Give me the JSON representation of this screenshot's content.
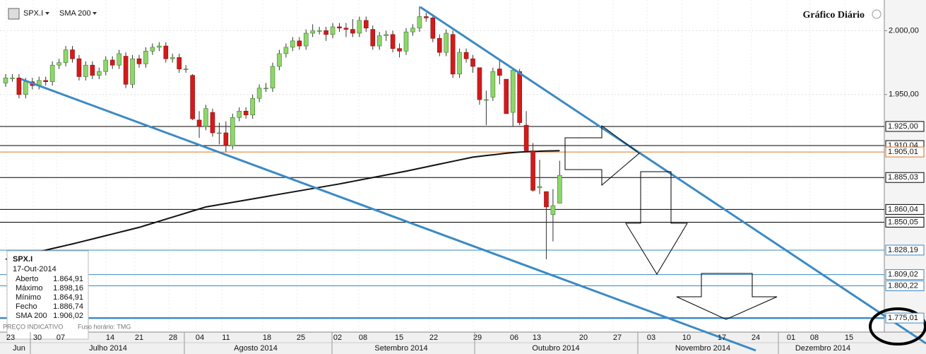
{
  "chart_data": {
    "type": "candlestick",
    "title": "Gráfico Diário",
    "symbol": "SPX.I",
    "indicator": "SMA 200",
    "open": [
      1959,
      1963,
      1963,
      1950,
      1960,
      1957,
      1961,
      1960,
      1973,
      1975,
      1985,
      1978,
      1964,
      1973,
      1965,
      1968,
      1977,
      1973,
      1980,
      1958,
      1978,
      1974,
      1984,
      1987,
      1988,
      1978,
      1979,
      1970,
      1965,
      1930,
      1925,
      1936,
      1920,
      1920,
      1910,
      1932,
      1937,
      1934,
      1947,
      1955,
      1955,
      1972,
      1982,
      1987,
      1992,
      1988,
      1998,
      2000,
      2000,
      1997,
      2003,
      2002,
      2001,
      1998,
      2008,
      2001,
      1988,
      1996,
      1997,
      1986,
      1984,
      1999,
      2002,
      2011,
      2010,
      1994,
      1983,
      1997,
      1966,
      1983,
      1978,
      1971,
      1946,
      1948,
      1970,
      1962,
      1936,
      1968,
      1926,
      1906,
      1877,
      1874,
      1856,
      1864.91
    ],
    "high": [
      1966,
      1966,
      1966,
      1963,
      1963,
      1964,
      1964,
      1976,
      1978,
      1988,
      1988,
      1981,
      1976,
      1976,
      1971,
      1980,
      1980,
      1985,
      1983,
      1981,
      1981,
      1987,
      1990,
      1991,
      1991,
      1982,
      1982,
      1973,
      1966,
      1937,
      1942,
      1939,
      1928,
      1929,
      1935,
      1940,
      1940,
      1950,
      1958,
      1959,
      1975,
      1985,
      1990,
      1995,
      1995,
      2001,
      2005,
      2003,
      2003,
      2006,
      2006,
      2006,
      2009,
      2011,
      2011,
      2004,
      1999,
      2000,
      2000,
      1990,
      2002,
      2005,
      2019,
      2014,
      2013,
      1997,
      2001,
      2000,
      1986,
      1986,
      1981,
      1971,
      1953,
      1971,
      1977,
      1962,
      1970,
      1970,
      1937,
      1912,
      1899,
      1874,
      1876,
      1898.16
    ],
    "low": [
      1956,
      1960,
      1947,
      1947,
      1954,
      1954,
      1957,
      1957,
      1970,
      1972,
      1975,
      1961,
      1961,
      1962,
      1962,
      1965,
      1970,
      1970,
      1955,
      1955,
      1971,
      1971,
      1981,
      1984,
      1975,
      1975,
      1967,
      1967,
      1930,
      1916,
      1922,
      1917,
      1911,
      1905,
      1907,
      1929,
      1931,
      1931,
      1944,
      1952,
      1952,
      1969,
      1979,
      1984,
      1985,
      1985,
      1995,
      1997,
      1992,
      1994,
      1999,
      1995,
      1995,
      1995,
      1999,
      1985,
      1985,
      1992,
      1983,
      1979,
      1981,
      1996,
      1999,
      2007,
      1991,
      1980,
      1980,
      1963,
      1963,
      1975,
      1967,
      1942,
      1926,
      1945,
      1958,
      1935,
      1925,
      1926,
      1906,
      1874,
      1872,
      1821,
      1835,
      1864.91
    ],
    "close": [
      1963,
      1963,
      1950,
      1960,
      1957,
      1961,
      1960,
      1973,
      1975,
      1985,
      1978,
      1964,
      1973,
      1965,
      1968,
      1977,
      1973,
      1982,
      1958,
      1978,
      1974,
      1984,
      1987,
      1988,
      1978,
      1979,
      1970,
      1970,
      1931,
      1925,
      1939,
      1920,
      1920,
      1910,
      1932,
      1937,
      1934,
      1947,
      1955,
      1955,
      1972,
      1982,
      1987,
      1992,
      1988,
      1998,
      2000,
      2000,
      1997,
      2003,
      2002,
      2001,
      1998,
      2008,
      2002,
      1988,
      1996,
      1997,
      1986,
      1984,
      1999,
      2002,
      2011,
      2010,
      1994,
      1983,
      1998,
      1966,
      1983,
      1978,
      1972,
      1946,
      1946,
      1968,
      1965,
      1935,
      1969,
      1928,
      1906,
      1875,
      1878,
      1862,
      1863,
      1886.74
    ],
    "sma": [
      1821,
      1822.2,
      1823.4,
      1824.6,
      1825.8,
      1827,
      1828.2,
      1829.4,
      1830.6,
      1831.8,
      1833,
      1834.3,
      1835.6,
      1836.9,
      1838.2,
      1839.5,
      1840.8,
      1842.1,
      1843.4,
      1844.7,
      1846,
      1847.6,
      1849.2,
      1850.8,
      1852.4,
      1854,
      1855.6,
      1857.2,
      1858.8,
      1860.4,
      1862,
      1862.9,
      1863.8,
      1864.7,
      1865.6,
      1866.5,
      1867.4,
      1868.3,
      1869.2,
      1870.1,
      1871,
      1871.9,
      1872.8,
      1873.7,
      1874.6,
      1875.5,
      1876.4,
      1877.3,
      1878.2,
      1879.1,
      1880,
      1881,
      1882,
      1883,
      1884,
      1885,
      1886,
      1887,
      1888,
      1889,
      1890,
      1891.1,
      1892.2,
      1893.3,
      1894.4,
      1895.5,
      1896.6,
      1897.7,
      1898.8,
      1899.9,
      1901,
      1901.6,
      1902.2,
      1902.8,
      1903.4,
      1904,
      1904.5,
      1904.9,
      1905.2,
      1905.4,
      1905.6,
      1905.8,
      1905.9,
      1906.02
    ],
    "up_color": "#8fd66b",
    "down_color": "#d41a1a",
    "sma_color": "#111111",
    "trend_color": "#3b8ac4",
    "ylim": [
      1764,
      2024
    ],
    "yticks": [
      {
        "value": 1950,
        "label": "1.950,00"
      },
      {
        "value": 2000,
        "label": "2.000,00"
      }
    ],
    "grid": true,
    "levels": [
      {
        "value": 1925,
        "label": "1.925,00",
        "color": "#000000"
      },
      {
        "value": 1910.04,
        "label": "1.910,04",
        "color": "#000000"
      },
      {
        "value": 1905.01,
        "label": "1.905,01",
        "color": "#e0701e"
      },
      {
        "value": 1885.03,
        "label": "1.885,03",
        "color": "#000000"
      },
      {
        "value": 1860.04,
        "label": "1.860,04",
        "color": "#000000"
      },
      {
        "value": 1850.05,
        "label": "1.850,05",
        "color": "#000000"
      },
      {
        "value": 1828.19,
        "label": "1.828,19",
        "color": "#3b8ac4"
      },
      {
        "value": 1809.02,
        "label": "1.809,02",
        "color": "#3b8ac4"
      },
      {
        "value": 1800.22,
        "label": "1.800,22",
        "color": "#3b8ac4"
      },
      {
        "value": 1775.01,
        "label": "1.775,01",
        "color": "#3b8ac4"
      }
    ],
    "xticks": [
      "23",
      "30",
      "07",
      "14",
      "21",
      "28",
      "04",
      "11",
      "18",
      "25",
      "02",
      "08",
      "15",
      "22",
      "29",
      "06",
      "13",
      "20",
      "27",
      "03",
      "10",
      "17",
      "24",
      "01",
      "08",
      "15"
    ],
    "months": [
      "Jun",
      "Julho 2014",
      "Agosto 2014",
      "Setembro 2014",
      "Outubro 2014",
      "Novembro 2014",
      "Dezembro 2014"
    ],
    "info": {
      "symbol": "SPX.I",
      "date": "17-Out-2014",
      "rows": [
        [
          "Aberto",
          "1.864,91"
        ],
        [
          "Máximo",
          "1.898,16"
        ],
        [
          "Mínimo",
          "1.864,91"
        ],
        [
          "Fecho",
          "1.886,74"
        ],
        [
          "SMA 200",
          "1.906,02"
        ]
      ]
    },
    "footer": "PREÇO INDICATIVO",
    "timezone": "Fuso horário: TMG"
  }
}
